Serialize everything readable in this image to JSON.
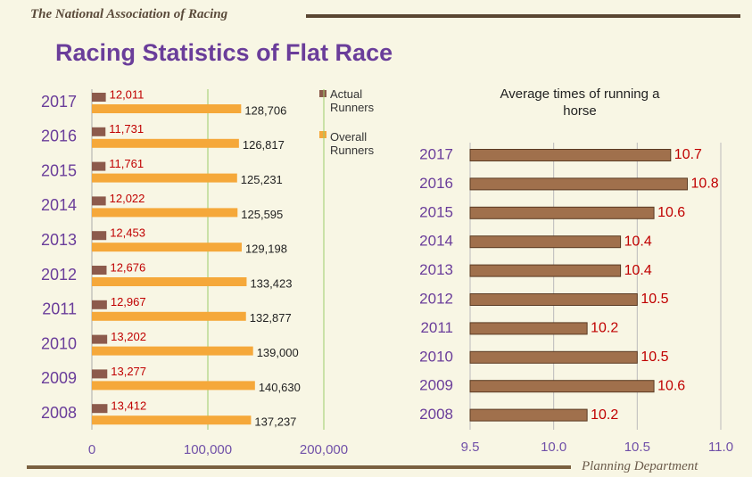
{
  "header": "The National Association of Racing",
  "title": "Racing  Statistics of Flat Race",
  "footer": "Planning Department",
  "chart_data": [
    {
      "type": "bar",
      "categories": [
        "2017",
        "2016",
        "2015",
        "2014",
        "2013",
        "2012",
        "2011",
        "2010",
        "2009",
        "2008"
      ],
      "series": [
        {
          "name": "Actual Runners",
          "color": "#8c5a4c",
          "values": [
            12011,
            11731,
            11761,
            12022,
            12453,
            12676,
            12967,
            13202,
            13277,
            13412
          ],
          "value_labels": [
            "12,011",
            "11,731",
            "11,761",
            "12,022",
            "12,453",
            "12,676",
            "12,967",
            "13,202",
            "13,277",
            "13,412"
          ]
        },
        {
          "name": "Overall Runners",
          "color": "#f5a83a",
          "values": [
            128706,
            126817,
            125231,
            125595,
            129198,
            133423,
            132877,
            139000,
            140630,
            137237
          ],
          "value_labels": [
            "128,706",
            "126,817",
            "125,231",
            "125,595",
            "129,198",
            "133,423",
            "132,877",
            "139,000",
            "140,630",
            "137,237"
          ]
        }
      ],
      "xlim": [
        0,
        200000
      ],
      "xticks": [
        0,
        {
          "value": 100000,
          "label": "100,000"
        },
        {
          "value": 200000,
          "label": "200,000"
        }
      ],
      "grid": true
    },
    {
      "type": "bar",
      "title": "Average times of running a horse",
      "categories": [
        "2017",
        "2016",
        "2015",
        "2014",
        "2013",
        "2012",
        "2011",
        "2010",
        "2009",
        "2008"
      ],
      "series": [
        {
          "color": "#a0704c",
          "values": [
            10.7,
            10.8,
            10.6,
            10.4,
            10.4,
            10.5,
            10.2,
            10.5,
            10.6,
            10.2
          ]
        }
      ],
      "xlim": [
        9.5,
        11.0
      ],
      "xticks": [
        9.5,
        {
          "value": 10,
          "label": "10.0"
        },
        10.5,
        {
          "value": 11,
          "label": "11.0"
        }
      ],
      "grid": true
    }
  ]
}
